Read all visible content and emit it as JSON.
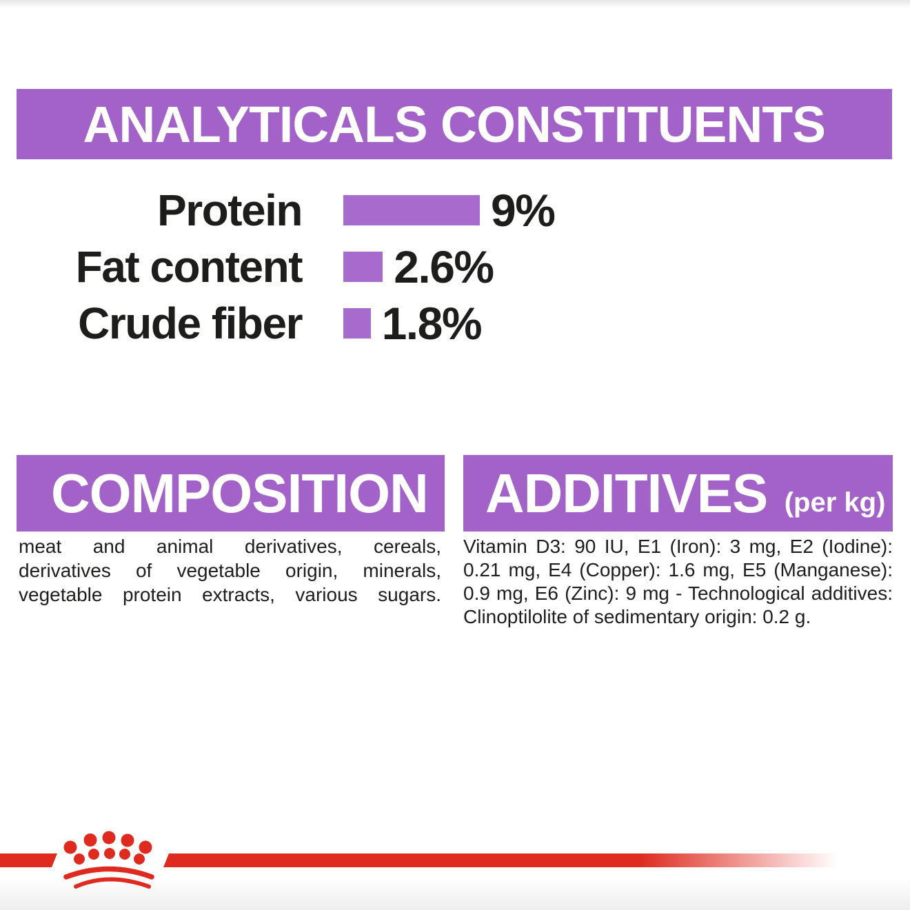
{
  "analyticals": {
    "title": "ANALYTICALS CONSTITUENTS"
  },
  "chart_data": {
    "type": "bar",
    "orientation": "horizontal",
    "title": "ANALYTICALS CONSTITUENTS",
    "categories": [
      "Protein",
      "Fat content",
      "Crude fiber"
    ],
    "values": [
      9,
      2.6,
      1.8
    ],
    "value_labels": [
      "9%",
      "2.6%",
      "1.8%"
    ],
    "unit": "%",
    "xlim": [
      0,
      9
    ],
    "grid": false,
    "legend": false,
    "bar_color": "#A76BCE"
  },
  "composition": {
    "title": "COMPOSITION",
    "lines": [
      "meat and animal derivatives, cereals,",
      "derivatives of vegetable origin, minerals,",
      "vegetable protein extracts, various sugars."
    ],
    "justify_last_line": true
  },
  "additives": {
    "title": "ADDITIVES",
    "unit_note": "(per kg)",
    "lines": [
      "Vitamin D3: 90 IU, E1 (Iron): 3 mg, E2 (Iodine):",
      "0.21 mg, E4 (Copper): 1.6 mg, E5 (Manganese):",
      "0.9 mg, E6 (Zinc): 9 mg - Technological additives:",
      "Clinoptilolite of sedimentary origin: 0.2 g."
    ],
    "justify_last_line": false
  },
  "footer": {
    "brand_logo": "royal-canin-crown"
  },
  "colors": {
    "purple": "#A262C8",
    "bar_purple": "#A76BCE",
    "red": "#DF2B1F",
    "ink": "#1D1D1B"
  }
}
